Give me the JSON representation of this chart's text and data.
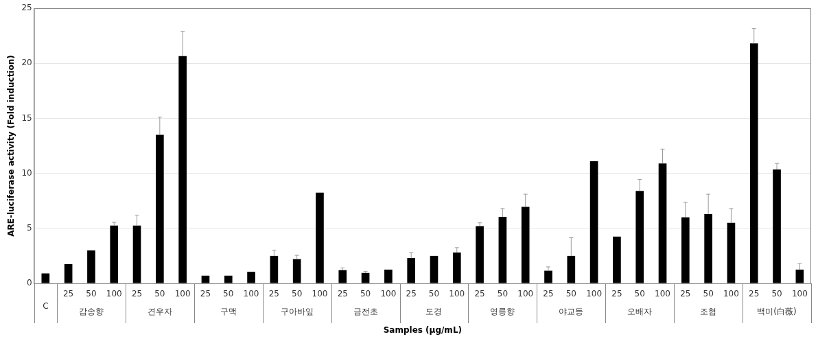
{
  "chart_data": {
    "type": "bar",
    "xlabel": "Samples (μg/mL)",
    "ylabel": "ARE-luciferase activity (Fold induction)",
    "categories": [
      "C",
      "25",
      "50",
      "100",
      "25",
      "50",
      "100",
      "25",
      "50",
      "100",
      "25",
      "50",
      "100",
      "25",
      "50",
      "100",
      "25",
      "50",
      "100",
      "25",
      "50",
      "100",
      "25",
      "50",
      "100",
      "25",
      "50",
      "100",
      "25",
      "50",
      "100",
      "25",
      "50",
      "100"
    ],
    "values": [
      0.9,
      1.75,
      3.0,
      5.25,
      5.25,
      13.5,
      20.65,
      0.7,
      0.7,
      1.05,
      2.5,
      2.2,
      8.25,
      1.2,
      0.95,
      1.25,
      2.3,
      2.5,
      2.8,
      5.2,
      6.05,
      6.95,
      1.15,
      2.5,
      11.1,
      4.25,
      8.4,
      10.9,
      6.0,
      6.3,
      5.5,
      21.8,
      10.35,
      1.25
    ],
    "errors": [
      null,
      null,
      null,
      0.3,
      0.95,
      1.6,
      2.25,
      null,
      null,
      null,
      0.5,
      0.35,
      null,
      0.2,
      0.15,
      null,
      0.5,
      null,
      0.45,
      0.3,
      0.75,
      1.15,
      0.35,
      1.65,
      null,
      null,
      1.05,
      1.3,
      1.35,
      1.8,
      1.3,
      1.35,
      0.55,
      0.55
    ],
    "color": "#000000",
    "annotations": [
      "감송향",
      "견우자",
      "구맥",
      "구아바잎",
      "금전초",
      "도경",
      "영릉향",
      "야교등",
      "오배자",
      "조협",
      "백미(白薇)"
    ],
    "ylim": [
      0,
      25
    ],
    "yticks": [
      0,
      5,
      10,
      15,
      20,
      25
    ],
    "grid": "y"
  }
}
